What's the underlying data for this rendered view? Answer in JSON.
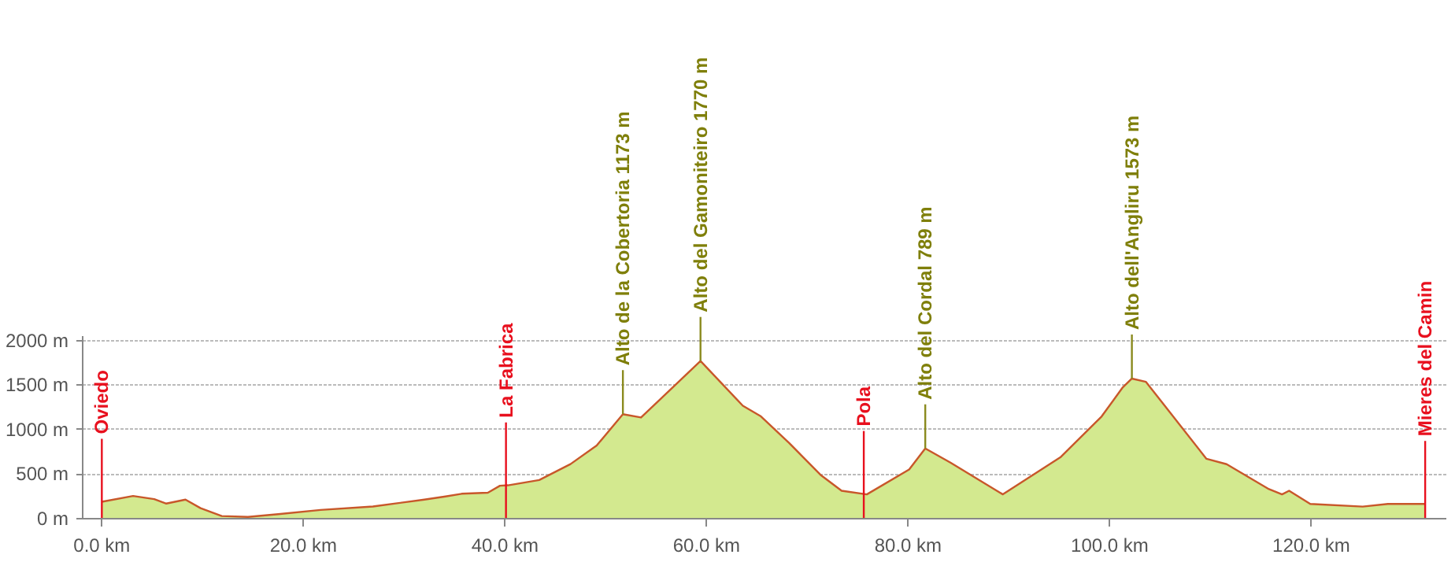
{
  "chart_data": {
    "type": "area",
    "x": [
      0,
      3.1,
      5.2,
      6.4,
      8.3,
      9.8,
      11.9,
      14.5,
      17.5,
      21.7,
      26.9,
      32,
      34.1,
      35.7,
      38.3,
      39.5,
      40.3,
      43.4,
      46.5,
      49.1,
      51.7,
      53.5,
      59.4,
      63.6,
      65.4,
      68.2,
      71.3,
      73.4,
      75.9,
      80.1,
      81.7,
      84.2,
      89.4,
      95.1,
      99.2,
      101.3,
      102.2,
      103.6,
      109.6,
      111.6,
      115.8,
      117.1,
      117.8,
      119.9,
      125.1,
      127.6,
      131.3
    ],
    "series": [
      {
        "color": "#d3e98f",
        "values": [
          190,
          255,
          220,
          170,
          214,
          118,
          30,
          20,
          51,
          98,
          137,
          214,
          250,
          280,
          291,
          370,
          375,
          434,
          613,
          821,
          1173,
          1136,
          1770,
          1268,
          1148,
          850,
          493,
          314,
          273,
          553,
          789,
          630,
          273,
          689,
          1148,
          1475,
          1573,
          1536,
          672,
          612,
          332,
          273,
          314,
          166,
          136,
          166,
          166
        ]
      }
    ],
    "xlim": [
      -1.9,
      133.4
    ],
    "ylim": [
      0,
      2050
    ],
    "xticks": [
      {
        "value": 0,
        "label": "0.0 km"
      },
      {
        "value": 20,
        "label": "20.0 km"
      },
      {
        "value": 40,
        "label": "40.0 km"
      },
      {
        "value": 60,
        "label": "60.0 km"
      },
      {
        "value": 80,
        "label": "80.0 km"
      },
      {
        "value": 100,
        "label": "100.0 km"
      },
      {
        "value": 120,
        "label": "120.0 km"
      }
    ],
    "yticks": [
      {
        "value": 0,
        "label": "0 m"
      },
      {
        "value": 500,
        "label": "500 m"
      },
      {
        "value": 1000,
        "label": "1000 m"
      },
      {
        "value": 1500,
        "label": "1500 m"
      },
      {
        "value": 2000,
        "label": "2000 m"
      }
    ],
    "grid": "y",
    "ref_lines": [
      {
        "axis": "x",
        "value": 0,
        "label": "Oviedo",
        "color": "#e8101e"
      },
      {
        "axis": "x",
        "value": 40.1,
        "label": "La Fabrica",
        "color": "#e8101e"
      },
      {
        "axis": "x",
        "value": 75.6,
        "label": "Pola",
        "color": "#e8101e"
      },
      {
        "axis": "x",
        "value": 131.3,
        "label": "Mieres del Camin",
        "color": "#e8101e"
      }
    ],
    "annotations": [
      {
        "text": "Alto de la Cobertoria 1173 m",
        "x": 51.7,
        "y": 1173
      },
      {
        "text": "Alto del Gamoniteiro 1770 m",
        "x": 59.4,
        "y": 1770
      },
      {
        "text": "Alto del Cordal 789 m",
        "x": 81.7,
        "y": 789
      },
      {
        "text": "Alto dell'Angliru 1573 m",
        "x": 102.2,
        "y": 1573
      }
    ]
  }
}
